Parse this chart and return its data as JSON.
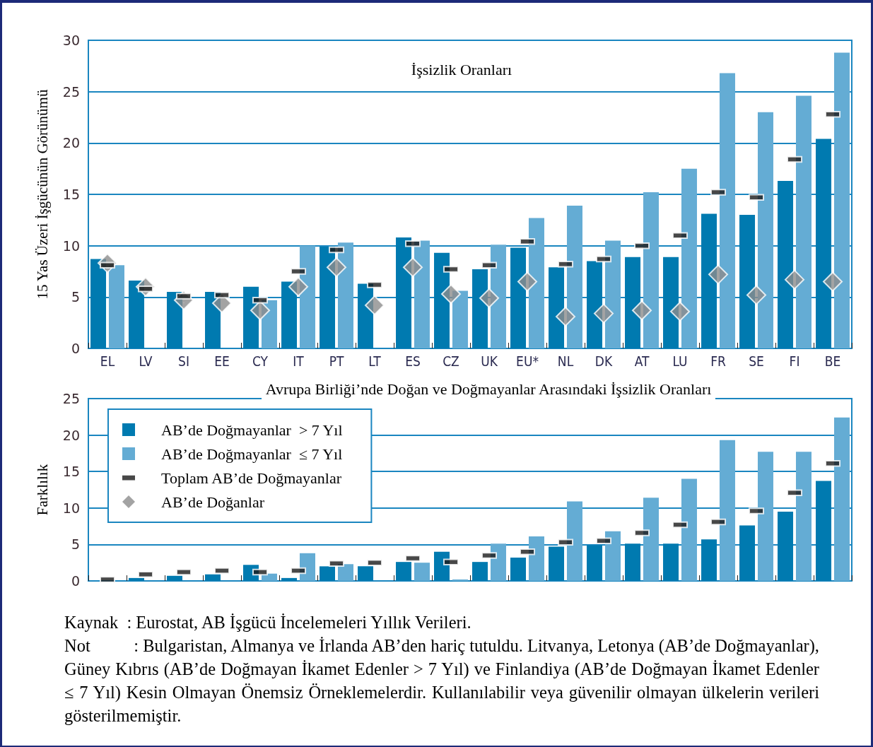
{
  "chart_data": [
    {
      "type": "bar",
      "title": "İşsizlik Oranları",
      "ylabel": "15 Yas Üzeri İşgücünün Görünümü",
      "categories": [
        "EL",
        "LV",
        "SI",
        "EE",
        "CY",
        "IT",
        "PT",
        "LT",
        "ES",
        "CZ",
        "UK",
        "EU*",
        "NL",
        "DK",
        "AT",
        "LU",
        "FR",
        "SE",
        "FI",
        "BE"
      ],
      "series": [
        {
          "color": "#007ab0",
          "values": [
            8.7,
            6.6,
            5.5,
            5.5,
            6.0,
            6.5,
            9.9,
            6.3,
            10.8,
            9.3,
            7.7,
            9.8,
            7.9,
            8.5,
            8.9,
            8.9,
            13.1,
            13.0,
            16.3,
            20.4
          ]
        },
        {
          "color": "#64acd4",
          "values": [
            8.1,
            null,
            null,
            null,
            4.7,
            10.0,
            10.3,
            null,
            10.5,
            5.6,
            10.1,
            12.7,
            13.9,
            10.5,
            15.2,
            17.5,
            26.8,
            23.0,
            24.6,
            28.8
          ]
        },
        {
          "type": "scatter",
          "color": "#1a1a1a",
          "values": [
            8.1,
            5.8,
            5.1,
            5.2,
            4.7,
            7.5,
            9.6,
            6.2,
            10.2,
            7.7,
            8.1,
            10.4,
            8.2,
            8.7,
            10.0,
            11.0,
            15.2,
            14.7,
            18.4,
            22.8
          ]
        },
        {
          "type": "scatter",
          "marker": "diamond",
          "color": "#8c8c8c",
          "values": [
            8.3,
            6.0,
            4.7,
            4.4,
            3.7,
            6.0,
            7.9,
            4.2,
            7.9,
            5.3,
            4.9,
            6.5,
            3.1,
            3.4,
            3.7,
            3.6,
            7.2,
            5.2,
            6.7,
            6.5
          ]
        }
      ],
      "ylim": [
        0,
        30
      ],
      "yticks": [
        0,
        5,
        10,
        15,
        20,
        25,
        30
      ],
      "grid": "y",
      "legend": false
    },
    {
      "type": "bar",
      "title": "Avrupa Birliği’nde Doğan ve Doğmayanlar Arasındaki İşsizlik Oranları",
      "ylabel": "Farklılık",
      "series": [
        {
          "name": "AB’de Doğmayanlar  > 7 Yıl",
          "color": "#007ab0",
          "values": [
            null,
            0.4,
            0.7,
            0.9,
            2.2,
            0.4,
            2.0,
            2.0,
            2.6,
            4.0,
            2.6,
            3.2,
            4.7,
            4.9,
            5.1,
            5.1,
            5.7,
            7.6,
            9.5,
            13.7
          ]
        },
        {
          "name": "AB’de Doğmayanlar  ≤ 7 Yıl",
          "color": "#64acd4",
          "values": [
            null,
            null,
            null,
            null,
            1.0,
            3.8,
            2.3,
            null,
            2.5,
            0.2,
            5.1,
            6.1,
            10.9,
            6.8,
            11.4,
            14.0,
            19.3,
            17.7,
            17.7,
            22.4
          ]
        },
        {
          "name": "Toplam AB’de Doğmayanlar",
          "type": "scatter",
          "color": "#1a1a1a",
          "values": [
            0.2,
            0.9,
            1.2,
            1.4,
            1.2,
            1.4,
            2.4,
            2.5,
            3.1,
            2.6,
            3.5,
            4.0,
            5.3,
            5.5,
            6.6,
            7.7,
            8.1,
            9.6,
            12.1,
            16.1
          ]
        },
        {
          "name": "AB’de Doğanlar",
          "type": "scatter",
          "marker": "diamond",
          "color": "#8c8c8c",
          "values": [
            null,
            null,
            null,
            null,
            null,
            null,
            null,
            null,
            null,
            null,
            null,
            null,
            null,
            null,
            null,
            null,
            null,
            null,
            null,
            null
          ]
        }
      ],
      "ylim": [
        0,
        25
      ],
      "yticks": [
        0,
        5,
        10,
        15,
        20,
        25
      ],
      "grid": "y",
      "legend": "top left",
      "tick_labels": "y",
      "categories": [
        null,
        null,
        null,
        null,
        null,
        null,
        null,
        null,
        null,
        null,
        null,
        null,
        null,
        null,
        null,
        null,
        null,
        null,
        null,
        null
      ],
      "annotations": [
        "Kaynak  : Eurostat, AB İşgücü İncelemeleri Yıllık Verileri.",
        "Not          : Bulgaristan, Almanya ve İrlanda AB’den hariç tutuldu. Litvanya, Letonya (AB’de Doğmayanlar), Güney Kıbrıs (AB’de Doğmayan İkamet Edenler > 7 Yıl) ve Finlandiya (AB’de Doğmayan İkamet Edenler ≤ 7 Yıl) Kesin Olmayan Önemsiz Örneklemelerdir. Kullanılabilir veya güvenilir olmayan ülkelerin verileri gösterilmemiştir."
      ]
    }
  ]
}
